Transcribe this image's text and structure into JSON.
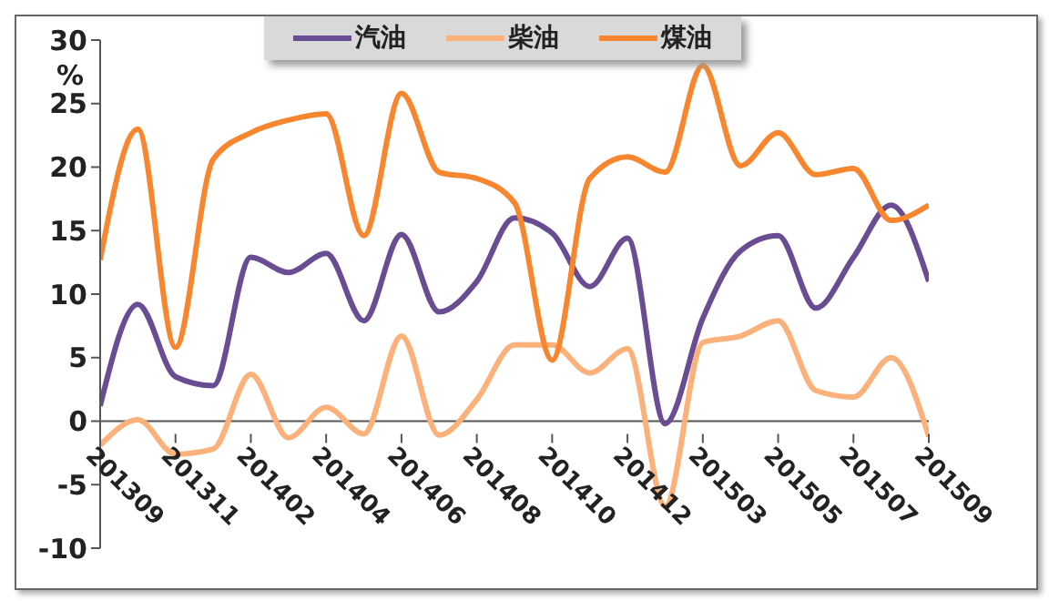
{
  "chart_data": {
    "type": "line",
    "ylabel": "%",
    "categories": [
      "201309",
      null,
      "201311",
      null,
      "201402",
      null,
      "201404",
      null,
      "201406",
      null,
      "201408",
      null,
      "201410",
      null,
      "201412",
      null,
      "201503",
      null,
      "201505",
      null,
      "201507",
      null,
      "201509"
    ],
    "series": [
      {
        "name": "汽油",
        "color": "#6a4c93",
        "values": [
          1.2,
          9.2,
          3.5,
          2.8,
          12.9,
          11.7,
          13.2,
          7.9,
          14.7,
          8.6,
          11,
          16,
          14.8,
          10.6,
          14.4,
          -0.2,
          8.1,
          13.4,
          14.6,
          8.9,
          12.9,
          17,
          11
        ]
      },
      {
        "name": "柴油",
        "color": "#fcb07a",
        "values": [
          -1.9,
          0.1,
          -2.6,
          -2.2,
          3.7,
          -1.3,
          1.1,
          -1,
          6.7,
          -1.1,
          1.7,
          6,
          6,
          3.8,
          5.7,
          -6.7,
          6.2,
          6.7,
          7.9,
          2.4,
          1.9,
          5,
          -1.2
        ]
      },
      {
        "name": "煤油",
        "color": "#f7862f",
        "values": [
          12.7,
          23,
          5.8,
          20.6,
          22.7,
          23.7,
          24.2,
          14.6,
          25.8,
          19.6,
          19.1,
          17.2,
          4.8,
          19.1,
          20.8,
          19.6,
          28,
          20.1,
          22.7,
          19.4,
          19.9,
          15.8,
          17
        ]
      }
    ],
    "ylim": [
      -10,
      30
    ],
    "yticks": [
      -10,
      -5,
      0,
      5,
      10,
      15,
      20,
      25,
      30
    ],
    "grid": false,
    "legend": "top",
    "marker": "none",
    "line_style": "solid"
  }
}
